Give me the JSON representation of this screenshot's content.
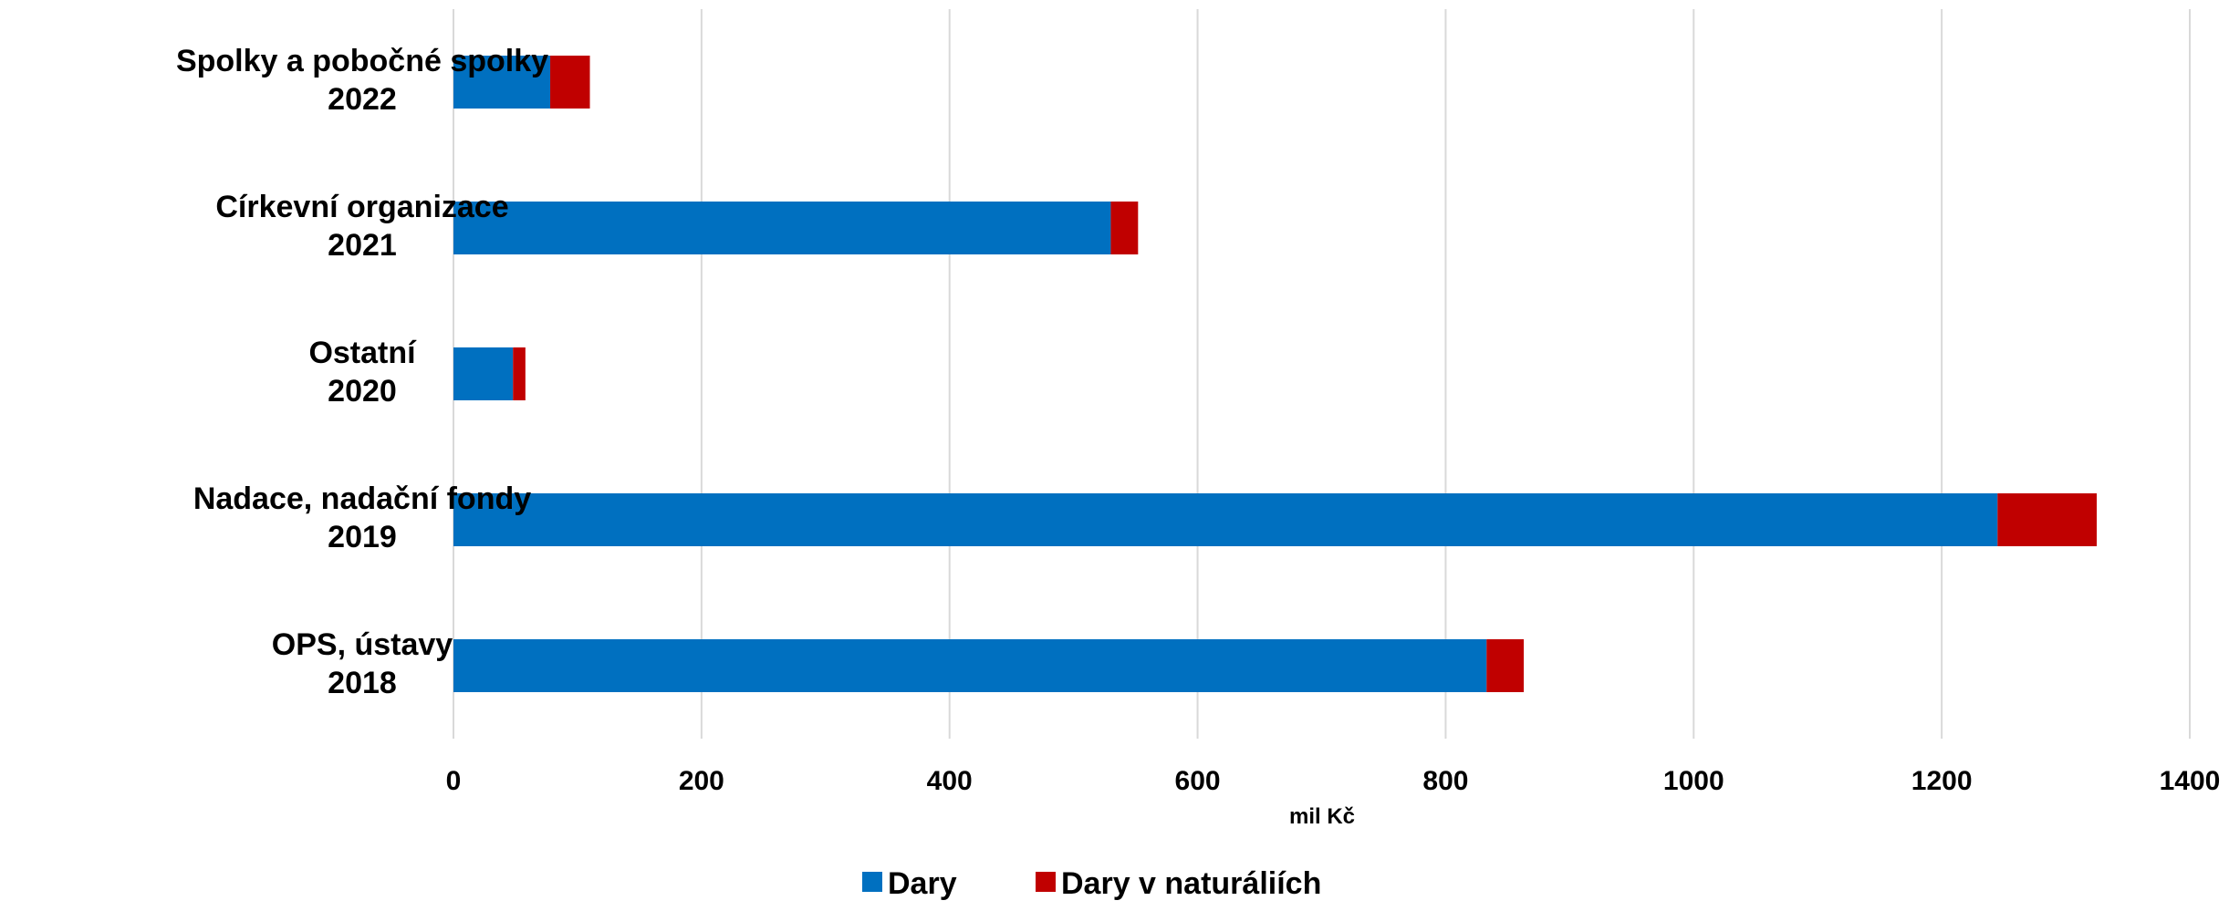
{
  "chart_data": {
    "type": "bar",
    "orientation": "horizontal",
    "stacked": true,
    "categories": [
      [
        "Spolky a pobočné spolky",
        "2022"
      ],
      [
        "Církevní organizace",
        "2021"
      ],
      [
        "Ostatní",
        "2020"
      ],
      [
        "Nadace, nadační fondy",
        "2019"
      ],
      [
        "OPS, ústavy",
        "2018"
      ]
    ],
    "series": [
      {
        "name": "Dary",
        "color": "#0070c0",
        "values": [
          78,
          530,
          48,
          1245,
          833
        ]
      },
      {
        "name": "Dary v naturáliích",
        "color": "#c00000",
        "values": [
          32,
          22,
          10,
          80,
          30
        ]
      }
    ],
    "xlabel": "mil Kč",
    "xlim": [
      0,
      1400
    ],
    "xticks": [
      0,
      200,
      400,
      600,
      800,
      1000,
      1200,
      1400
    ],
    "grid": true,
    "legend_position": "bottom"
  }
}
